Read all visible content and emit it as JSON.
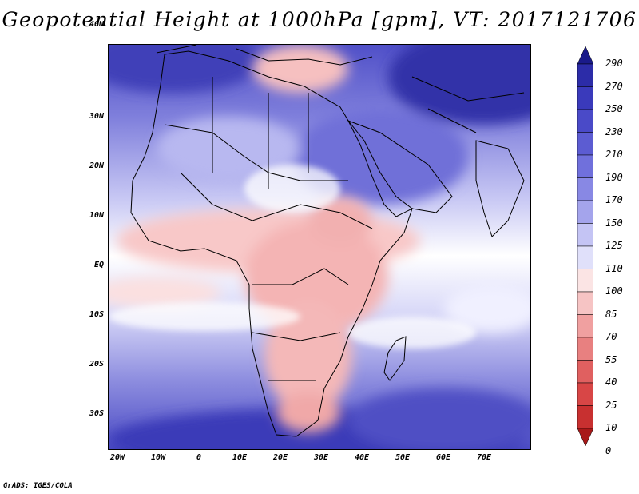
{
  "title": "Geopotential Height at 1000hPa [gpm], VT: 2017121706",
  "credit": "GrADS: IGES/COLA",
  "lat_labels": [
    "40N",
    "30N",
    "20N",
    "10N",
    "EQ",
    "10S",
    "20S",
    "30S"
  ],
  "lon_labels": [
    "20W",
    "10W",
    "0",
    "10E",
    "20E",
    "30E",
    "40E",
    "50E",
    "60E",
    "70E"
  ],
  "colorbar": {
    "labels": [
      "290",
      "270",
      "250",
      "230",
      "210",
      "190",
      "170",
      "150",
      "125",
      "110",
      "100",
      "85",
      "70",
      "55",
      "40",
      "25",
      "10",
      "0"
    ],
    "colors": [
      "#1a1a8a",
      "#2c2ca8",
      "#3a3abb",
      "#4a4ac8",
      "#5c5cd2",
      "#7070dc",
      "#8888e4",
      "#a4a4ec",
      "#c4c4f4",
      "#e0e0fa",
      "#fbe4e4",
      "#f6c4c4",
      "#f0a0a0",
      "#e88080",
      "#e06060",
      "#d84646",
      "#c83030",
      "#a81818"
    ]
  },
  "map": {
    "region": "Africa and Middle East",
    "lat_range": [
      -37,
      45
    ],
    "lon_range": [
      -23,
      80
    ],
    "colors": {
      "ocean_high": "#5050c8",
      "ocean_low": "#9090e0",
      "land_low": "#f8c4c4",
      "land_lower": "#f0a8a8",
      "neutral": "#ffffff",
      "north_high": "#3838b8"
    }
  }
}
